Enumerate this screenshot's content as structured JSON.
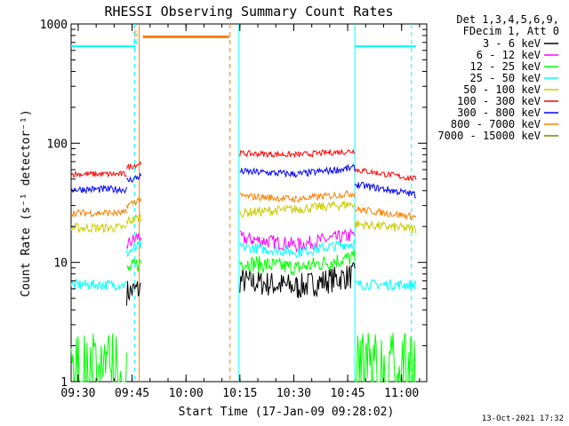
{
  "chart_data": {
    "type": "line",
    "title": "RHESSI Observing Summary Count Rates",
    "xlabel": "Start Time (17-Jan-09 09:28:02)",
    "ylabel": "Count Rate (s⁻¹ detector⁻¹)",
    "x_scale": "time",
    "x_range": [
      "09:28:02",
      "11:07:00"
    ],
    "y_scale": "log",
    "ylim": [
      1,
      1000
    ],
    "x_ticks": [
      "09:30",
      "09:45",
      "10:00",
      "10:15",
      "10:30",
      "10:45",
      "11:00"
    ],
    "y_ticks": [
      {
        "value": 1,
        "label": "1"
      },
      {
        "value": 10,
        "label": "10"
      },
      {
        "value": 100,
        "label": "100"
      },
      {
        "value": 1000,
        "label": "1000"
      }
    ],
    "legend_header": [
      "Det 1,3,4,5,6,9,",
      "FDecim 1, Att 0"
    ],
    "legend_position": "right",
    "timestamp": "13-Oct-2021 17:32",
    "flag_labels": [
      "S",
      "N"
    ],
    "series": [
      {
        "name": "3 - 6 keV",
        "color": "#000000",
        "segments": [
          {
            "t0": "09:43:30",
            "t1": "09:47:30",
            "v0": 5.6,
            "v1": 6.0
          },
          {
            "t0": "10:15:00",
            "t1": "10:31:00",
            "v0": 7.0,
            "v1": 6.2
          },
          {
            "t0": "10:31:00",
            "t1": "10:47:00",
            "v0": 6.2,
            "v1": 7.8
          }
        ]
      },
      {
        "name": "6 - 12 keV",
        "color": "#ff00ff",
        "segments": [
          {
            "t0": "09:43:30",
            "t1": "09:47:30",
            "v0": 14,
            "v1": 17
          },
          {
            "t0": "10:15:00",
            "t1": "10:31:00",
            "v0": 16,
            "v1": 14
          },
          {
            "t0": "10:31:00",
            "t1": "10:47:00",
            "v0": 14,
            "v1": 17
          }
        ]
      },
      {
        "name": "12 - 25 keV",
        "color": "#00ff00",
        "segments": [
          {
            "t0": "09:28:02",
            "t1": "09:43:30",
            "v0": 1.5,
            "v1": 1.5
          },
          {
            "t0": "09:43:30",
            "t1": "09:47:30",
            "v0": 8.5,
            "v1": 10
          },
          {
            "t0": "10:15:00",
            "t1": "10:31:00",
            "v0": 10,
            "v1": 9
          },
          {
            "t0": "10:31:00",
            "t1": "10:47:00",
            "v0": 9,
            "v1": 11
          },
          {
            "t0": "10:47:00",
            "t1": "11:04:00",
            "v0": 1.5,
            "v1": 1.5
          }
        ]
      },
      {
        "name": "25 - 50 keV",
        "color": "#00ffff",
        "segments": [
          {
            "t0": "09:28:02",
            "t1": "09:43:30",
            "v0": 6.5,
            "v1": 6.5
          },
          {
            "t0": "09:43:30",
            "t1": "09:47:30",
            "v0": 12,
            "v1": 14
          },
          {
            "t0": "10:15:00",
            "t1": "10:31:00",
            "v0": 13.5,
            "v1": 12.2
          },
          {
            "t0": "10:31:00",
            "t1": "10:47:00",
            "v0": 12.2,
            "v1": 14.5
          },
          {
            "t0": "10:47:00",
            "t1": "11:04:00",
            "v0": 6.5,
            "v1": 6.5
          }
        ]
      },
      {
        "name": "50 - 100 keV",
        "color": "#cccc00",
        "segments": [
          {
            "t0": "09:28:02",
            "t1": "09:43:30",
            "v0": 19.5,
            "v1": 19.5
          },
          {
            "t0": "09:43:30",
            "t1": "09:47:30",
            "v0": 22,
            "v1": 24
          },
          {
            "t0": "10:15:00",
            "t1": "10:31:00",
            "v0": 26,
            "v1": 28
          },
          {
            "t0": "10:31:00",
            "t1": "10:47:00",
            "v0": 28,
            "v1": 31
          },
          {
            "t0": "10:47:00",
            "t1": "11:04:00",
            "v0": 21,
            "v1": 19
          }
        ]
      },
      {
        "name": "100 - 300 keV",
        "color": "#ff0000",
        "segments": [
          {
            "t0": "09:28:02",
            "t1": "09:43:30",
            "v0": 55,
            "v1": 55
          },
          {
            "t0": "09:43:30",
            "t1": "09:47:30",
            "v0": 62,
            "v1": 68
          },
          {
            "t0": "10:15:00",
            "t1": "10:31:00",
            "v0": 82,
            "v1": 80
          },
          {
            "t0": "10:31:00",
            "t1": "10:47:00",
            "v0": 80,
            "v1": 86
          },
          {
            "t0": "10:47:00",
            "t1": "11:04:00",
            "v0": 60,
            "v1": 50
          }
        ]
      },
      {
        "name": "300 - 800 keV",
        "color": "#0000ff",
        "segments": [
          {
            "t0": "09:28:02",
            "t1": "09:43:30",
            "v0": 41,
            "v1": 41
          },
          {
            "t0": "09:43:30",
            "t1": "09:47:30",
            "v0": 48,
            "v1": 53
          },
          {
            "t0": "10:15:00",
            "t1": "10:31:00",
            "v0": 58,
            "v1": 55
          },
          {
            "t0": "10:31:00",
            "t1": "10:47:00",
            "v0": 55,
            "v1": 62
          },
          {
            "t0": "10:47:00",
            "t1": "11:04:00",
            "v0": 45,
            "v1": 37
          }
        ]
      },
      {
        "name": "800 - 7000 keV",
        "color": "#ff8000",
        "segments": [
          {
            "t0": "09:28:02",
            "t1": "09:43:30",
            "v0": 26,
            "v1": 26
          },
          {
            "t0": "09:43:30",
            "t1": "09:47:30",
            "v0": 30,
            "v1": 34
          },
          {
            "t0": "10:15:00",
            "t1": "10:31:00",
            "v0": 36,
            "v1": 34
          },
          {
            "t0": "10:31:00",
            "t1": "10:47:00",
            "v0": 34,
            "v1": 38
          },
          {
            "t0": "10:47:00",
            "t1": "11:04:00",
            "v0": 28,
            "v1": 24
          }
        ]
      },
      {
        "name": "7000 - 15000 keV",
        "color": "#808000",
        "segments": []
      }
    ],
    "attenuator_state": [
      {
        "label": "",
        "t0": "09:28:02",
        "t1": "09:46:00",
        "value": 650,
        "color": "#00ffff"
      },
      {
        "label": "",
        "t0": "10:47:00",
        "t1": "11:04:00",
        "value": 650,
        "color": "#00ffff"
      },
      {
        "label": "",
        "t0": "09:48:00",
        "t1": "10:12:00",
        "value": 780,
        "color": "#ff8000"
      }
    ]
  }
}
